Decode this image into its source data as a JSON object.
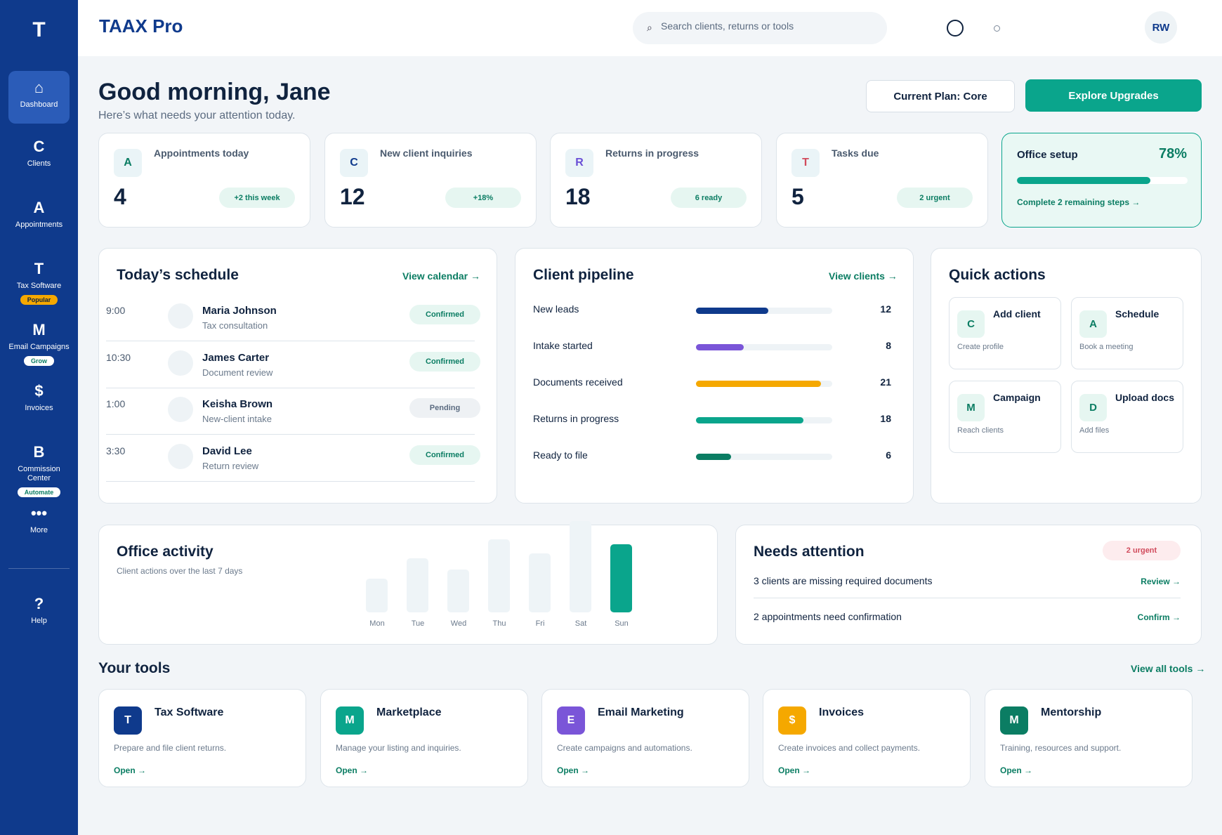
{
  "sidebar": {
    "logo": "T",
    "items": [
      {
        "glyph": "⌂",
        "label": "Dashboard",
        "badge": ""
      },
      {
        "glyph": "C",
        "label": "Clients",
        "badge": ""
      },
      {
        "glyph": "A",
        "label": "Appointments",
        "badge": ""
      },
      {
        "glyph": "T",
        "label": "Tax Software",
        "badge": "Popular"
      },
      {
        "glyph": "M",
        "label": "Email Campaigns",
        "badge": "Grow"
      },
      {
        "glyph": "$",
        "label": "Invoices",
        "badge": ""
      },
      {
        "glyph": "B",
        "label": "Commission Center",
        "badge": "Automate"
      },
      {
        "glyph": "•••",
        "label": "More",
        "badge": ""
      },
      {
        "glyph": "?",
        "label": "Help",
        "badge": ""
      }
    ]
  },
  "header": {
    "title": "TAAX Pro",
    "search_placeholder": "Search clients, returns or tools",
    "avatar_initials": "RW"
  },
  "greeting": {
    "title": "Good morning, Jane",
    "subtitle": "Here’s what needs your attention today.",
    "plan_label": "Current Plan: Core",
    "upgrade_label": "Explore Upgrades"
  },
  "stats": [
    {
      "icon": "A",
      "icon_color": "#0b7d63",
      "label": "Appointments today",
      "value": "4",
      "pill": "+2 this week"
    },
    {
      "icon": "C",
      "icon_color": "#0f3a8c",
      "label": "New client inquiries",
      "value": "12",
      "pill": "+18%"
    },
    {
      "icon": "R",
      "icon_color": "#6a4fd6",
      "label": "Returns in progress",
      "value": "18",
      "pill": "6 ready"
    },
    {
      "icon": "T",
      "icon_color": "#d14b5c",
      "label": "Tasks due",
      "value": "5",
      "pill": "2 urgent"
    }
  ],
  "office_setup": {
    "title": "Office setup",
    "percent_label": "78%",
    "progress": 0.78,
    "link": "Complete 2 remaining steps →"
  },
  "schedule": {
    "title": "Today’s schedule",
    "link": "View calendar →",
    "rows": [
      {
        "time": "9:00",
        "name": "Maria Johnson",
        "type": "Tax consultation",
        "status": "Confirmed"
      },
      {
        "time": "10:30",
        "name": "James Carter",
        "type": "Document review",
        "status": "Confirmed"
      },
      {
        "time": "1:00",
        "name": "Keisha Brown",
        "type": "New-client intake",
        "status": "Pending"
      },
      {
        "time": "3:30",
        "name": "David Lee",
        "type": "Return review",
        "status": "Confirmed"
      }
    ]
  },
  "pipeline": {
    "title": "Client pipeline",
    "link": "View clients →",
    "rows": [
      {
        "label": "New leads",
        "count": "12",
        "fraction": 0.53,
        "color": "#0f3a8c"
      },
      {
        "label": "Intake started",
        "count": "8",
        "fraction": 0.35,
        "color": "#7a55d8"
      },
      {
        "label": "Documents received",
        "count": "21",
        "fraction": 0.92,
        "color": "#f5a800"
      },
      {
        "label": "Returns in progress",
        "count": "18",
        "fraction": 0.79,
        "color": "#0aa58c"
      },
      {
        "label": "Ready to file",
        "count": "6",
        "fraction": 0.26,
        "color": "#0b7d63"
      }
    ]
  },
  "quick_actions": {
    "title": "Quick actions",
    "items": [
      {
        "icon": "C",
        "title": "Add client",
        "desc": "Create profile"
      },
      {
        "icon": "A",
        "title": "Schedule",
        "desc": "Book a meeting"
      },
      {
        "icon": "M",
        "title": "Campaign",
        "desc": "Reach clients"
      },
      {
        "icon": "D",
        "title": "Upload docs",
        "desc": "Add files"
      }
    ]
  },
  "activity": {
    "title": "Office activity",
    "subtitle": "Client actions over the last 7 days",
    "days": [
      {
        "label": "Mon",
        "level": 0.46
      },
      {
        "label": "Tue",
        "level": 0.74
      },
      {
        "label": "Wed",
        "level": 0.59
      },
      {
        "label": "Thu",
        "level": 1.0
      },
      {
        "label": "Fri",
        "level": 0.81
      },
      {
        "label": "Sat",
        "level": 1.25
      },
      {
        "label": "Sun",
        "level": 0.93
      }
    ],
    "highlight_index": 6
  },
  "attention": {
    "title": "Needs attention",
    "badge": "2 urgent",
    "rows": [
      {
        "text": "3 clients are missing required documents",
        "link": "Review →"
      },
      {
        "text": "2 appointments need confirmation",
        "link": "Confirm →"
      }
    ]
  },
  "tools": {
    "title": "Your tools",
    "link": "View all tools →",
    "items": [
      {
        "icon": "T",
        "color": "#0f3a8c",
        "name": "Tax Software",
        "desc": "Prepare and file client returns.",
        "open": "Open →"
      },
      {
        "icon": "M",
        "color": "#0aa58c",
        "name": "Marketplace",
        "desc": "Manage your listing and inquiries.",
        "open": "Open →"
      },
      {
        "icon": "E",
        "color": "#7a55d8",
        "name": "Email Marketing",
        "desc": "Create campaigns and automations.",
        "open": "Open →"
      },
      {
        "icon": "$",
        "color": "#f5a800",
        "name": "Invoices",
        "desc": "Create invoices and collect payments.",
        "open": "Open →"
      },
      {
        "icon": "M",
        "color": "#0b7d63",
        "name": "Mentorship",
        "desc": "Training, resources and support.",
        "open": "Open →"
      }
    ]
  }
}
